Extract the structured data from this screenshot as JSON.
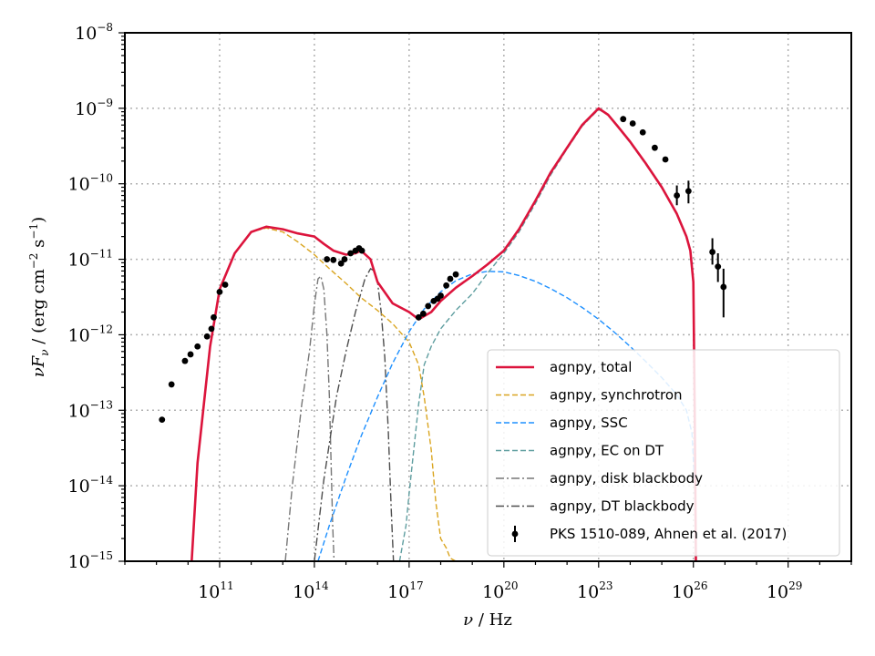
{
  "chart_data": {
    "type": "line",
    "x_scale": "log",
    "y_scale": "log",
    "xlim": [
      100000000.0,
      1e+31
    ],
    "ylim": [
      1e-15,
      1e-08
    ],
    "grid": true,
    "legend_position": "lower-right",
    "xlabel": "ν / Hz",
    "ylabel": "νF_ν / (erg cm^-2 s^-1)",
    "x_ticks": [
      {
        "value": 100000000000.0,
        "base": "10",
        "exp": "11"
      },
      {
        "value": 100000000000000.0,
        "base": "10",
        "exp": "14"
      },
      {
        "value": 1e+17,
        "base": "10",
        "exp": "17"
      },
      {
        "value": 1e+20,
        "base": "10",
        "exp": "20"
      },
      {
        "value": 1e+23,
        "base": "10",
        "exp": "23"
      },
      {
        "value": 1e+26,
        "base": "10",
        "exp": "26"
      },
      {
        "value": 1e+29,
        "base": "10",
        "exp": "29"
      }
    ],
    "y_ticks": [
      {
        "value": 1e-08,
        "base": "10",
        "exp": "−8"
      },
      {
        "value": 1e-09,
        "base": "10",
        "exp": "−9"
      },
      {
        "value": 1e-10,
        "base": "10",
        "exp": "−10"
      },
      {
        "value": 1e-11,
        "base": "10",
        "exp": "−11"
      },
      {
        "value": 1e-12,
        "base": "10",
        "exp": "−12"
      },
      {
        "value": 1e-13,
        "base": "10",
        "exp": "−13"
      },
      {
        "value": 1e-14,
        "base": "10",
        "exp": "−14"
      },
      {
        "value": 1e-15,
        "base": "10",
        "exp": "−15"
      }
    ],
    "series": [
      {
        "name": "agnpy, total",
        "color": "#dc143c",
        "style": "solid",
        "x": [
          13000000000.0,
          20000000000.0,
          50000000000.0,
          100000000000.0,
          300000000000.0,
          1000000000000.0,
          3000000000000.0,
          10000000000000.0,
          30000000000000.0,
          100000000000000.0,
          200000000000000.0,
          400000000000000.0,
          1000000000000000.0,
          2000000000000000.0,
          3000000000000000.0,
          6000000000000000.0,
          1e+16,
          3e+16,
          1e+17,
          2e+17,
          5e+17,
          1e+18,
          3e+18,
          1e+19,
          3e+19,
          1e+20,
          3e+20,
          1e+21,
          3e+21,
          1e+22,
          3e+22,
          1e+23,
          2e+23,
          4e+23,
          1e+24,
          3e+24,
          1e+25,
          3e+25,
          6e+25,
          8e+25,
          1e+26,
          1.1e+26,
          1.2e+26
        ],
        "y": [
          1e-15,
          2e-14,
          7e-13,
          4e-12,
          1.2e-11,
          2.3e-11,
          2.7e-11,
          2.5e-11,
          2.2e-11,
          2e-11,
          1.6e-11,
          1.3e-11,
          1.15e-11,
          1.2e-11,
          1.3e-11,
          1e-11,
          5e-12,
          2.6e-12,
          2e-12,
          1.6e-12,
          2e-12,
          2.8e-12,
          4.2e-12,
          6e-12,
          8.5e-12,
          1.3e-11,
          2.5e-11,
          6e-11,
          1.4e-10,
          3e-10,
          6e-10,
          1e-09,
          8.2e-10,
          5.8e-10,
          3.6e-10,
          1.9e-10,
          9e-11,
          4e-11,
          2e-11,
          1.3e-11,
          5e-12,
          1e-13,
          1e-15
        ]
      },
      {
        "name": "agnpy, synchrotron",
        "color": "#daa520",
        "style": "dashed",
        "x": [
          13000000000.0,
          20000000000.0,
          50000000000.0,
          100000000000.0,
          300000000000.0,
          1000000000000.0,
          3000000000000.0,
          10000000000000.0,
          30000000000000.0,
          100000000000000.0,
          300000000000000.0,
          1000000000000000.0,
          3000000000000000.0,
          1e+16,
          3e+16,
          1e+17,
          2e+17,
          3e+17,
          5e+17,
          7e+17,
          1e+18,
          1.5e+18,
          2e+18,
          3e+18
        ],
        "y": [
          1e-15,
          2e-14,
          7e-13,
          4e-12,
          1.2e-11,
          2.3e-11,
          2.6e-11,
          2.3e-11,
          1.7e-11,
          1.15e-11,
          7.5e-12,
          4.8e-12,
          3.1e-12,
          2.1e-12,
          1.4e-12,
          8e-13,
          4e-13,
          1.5e-13,
          3e-14,
          6e-15,
          2e-15,
          1.5e-15,
          1.1e-15,
          1e-15
        ]
      },
      {
        "name": "agnpy, SSC",
        "color": "#1e90ff",
        "style": "dashed",
        "x": [
          130000000000000.0,
          300000000000000.0,
          1000000000000000.0,
          3000000000000000.0,
          1e+16,
          3e+16,
          1e+17,
          3e+17,
          1e+18,
          3e+18,
          1e+19,
          3e+19,
          1e+20,
          3e+20,
          1e+21,
          3e+21,
          1e+22,
          3e+22,
          1e+23,
          3e+23,
          1e+24,
          3e+24,
          1e+25,
          3e+25,
          6e+25,
          9e+25,
          1.1e+26,
          1.2e+26
        ],
        "y": [
          1e-15,
          3e-15,
          1.3e-14,
          4.5e-14,
          1.5e-13,
          4.2e-13,
          1.1e-12,
          2.2e-12,
          3.7e-12,
          5.2e-12,
          6.4e-12,
          6.9e-12,
          6.8e-12,
          6.1e-12,
          5.1e-12,
          4.1e-12,
          3.1e-12,
          2.3e-12,
          1.6e-12,
          1.1e-12,
          7e-13,
          4.5e-13,
          2.7e-13,
          1.6e-13,
          1e-13,
          5e-14,
          1e-14,
          1e-15
        ]
      },
      {
        "name": "agnpy, EC on DT",
        "color": "#5f9ea0",
        "style": "dashed",
        "x": [
          5e+16,
          8e+16,
          1e+17,
          2e+17,
          3e+17,
          5e+17,
          1e+18,
          3e+18,
          1e+19,
          3e+19,
          1e+20,
          3e+20,
          1e+21,
          3e+21,
          1e+22,
          3e+22,
          1e+23,
          2e+23,
          4e+23,
          1e+24,
          3e+24,
          1e+25,
          3e+25,
          6e+25,
          8e+25,
          1e+26,
          1.1e+26,
          1.2e+26
        ],
        "y": [
          1e-15,
          3e-15,
          8e-15,
          1.2e-13,
          4e-13,
          7e-13,
          1.2e-12,
          2.1e-12,
          3.5e-12,
          6.5e-12,
          1.2e-11,
          2.3e-11,
          5.5e-11,
          1.3e-10,
          2.9e-10,
          5.8e-10,
          9.7e-10,
          8.1e-10,
          5.7e-10,
          3.5e-10,
          1.85e-10,
          8.8e-11,
          3.9e-11,
          1.95e-11,
          1.3e-11,
          5e-12,
          1e-13,
          1e-15
        ]
      },
      {
        "name": "agnpy, disk blackbody",
        "color": "#696969",
        "style": "dashdot",
        "x": [
          12000000000000.0,
          20000000000000.0,
          40000000000000.0,
          70000000000000.0,
          100000000000000.0,
          130000000000000.0,
          160000000000000.0,
          200000000000000.0,
          250000000000000.0,
          300000000000000.0,
          380000000000000.0,
          420000000000000.0
        ],
        "y": [
          1e-15,
          1e-14,
          1.2e-13,
          6e-13,
          2.5e-12,
          5.5e-12,
          6e-12,
          4e-12,
          1e-12,
          1.5e-13,
          3e-15,
          1e-15
        ],
        "shade": "#777777"
      },
      {
        "name": "agnpy, DT blackbody",
        "color": "#696969",
        "style": "dashdot",
        "x": [
          100000000000000.0,
          200000000000000.0,
          500000000000000.0,
          1000000000000000.0,
          2000000000000000.0,
          4000000000000000.0,
          6000000000000000.0,
          8000000000000000.0,
          1e+16,
          1.3e+16,
          1.7e+16,
          2.2e+16,
          2.7e+16,
          3.2e+16
        ],
        "y": [
          1e-15,
          1.2e-14,
          1.5e-13,
          6e-13,
          2e-12,
          5.5e-12,
          7.5e-12,
          7e-12,
          5e-12,
          2e-12,
          5e-13,
          5e-14,
          5e-15,
          1e-15
        ],
        "shade": "#4d4d4d"
      }
    ],
    "data_points": {
      "name": "PKS 1510-089, Ahnen et al. (2017)",
      "color": "#000000",
      "points": [
        {
          "x": 1500000000.0,
          "y": 7.5e-14
        },
        {
          "x": 3000000000.0,
          "y": 2.2e-13
        },
        {
          "x": 8000000000.0,
          "y": 4.5e-13
        },
        {
          "x": 12000000000.0,
          "y": 5.5e-13
        },
        {
          "x": 20000000000.0,
          "y": 7e-13
        },
        {
          "x": 40000000000.0,
          "y": 9.5e-13
        },
        {
          "x": 55000000000.0,
          "y": 1.2e-12
        },
        {
          "x": 65000000000.0,
          "y": 1.7e-12
        },
        {
          "x": 100000000000.0,
          "y": 3.7e-12
        },
        {
          "x": 150000000000.0,
          "y": 4.6e-12
        },
        {
          "x": 250000000000000.0,
          "y": 1e-11
        },
        {
          "x": 400000000000000.0,
          "y": 9.8e-12
        },
        {
          "x": 700000000000000.0,
          "y": 8.8e-12
        },
        {
          "x": 900000000000000.0,
          "y": 1e-11
        },
        {
          "x": 1400000000000000.0,
          "y": 1.2e-11
        },
        {
          "x": 2000000000000000.0,
          "y": 1.3e-11
        },
        {
          "x": 2600000000000000.0,
          "y": 1.4e-11
        },
        {
          "x": 3200000000000000.0,
          "y": 1.3e-11
        },
        {
          "x": 2e+17,
          "y": 1.7e-12
        },
        {
          "x": 2.8e+17,
          "y": 1.9e-12
        },
        {
          "x": 4e+17,
          "y": 2.4e-12
        },
        {
          "x": 6e+17,
          "y": 2.8e-12
        },
        {
          "x": 8e+17,
          "y": 3e-12
        },
        {
          "x": 1e+18,
          "y": 3.3e-12
        },
        {
          "x": 1.5e+18,
          "y": 4.5e-12
        },
        {
          "x": 2e+18,
          "y": 5.5e-12
        },
        {
          "x": 3e+18,
          "y": 6.3e-12
        },
        {
          "x": 6e+23,
          "y": 7.2e-10
        },
        {
          "x": 1.2e+24,
          "y": 6.3e-10
        },
        {
          "x": 2.5e+24,
          "y": 4.8e-10
        },
        {
          "x": 6e+24,
          "y": 3e-10
        },
        {
          "x": 1.3e+25,
          "y": 2.1e-10
        },
        {
          "x": 3e+25,
          "y": 7e-11,
          "yerr": [
            5.2e-11,
            9.5e-11
          ]
        },
        {
          "x": 7e+25,
          "y": 8e-11,
          "yerr": [
            5.5e-11,
            1.1e-10
          ]
        },
        {
          "x": 4e+26,
          "y": 1.25e-11,
          "yerr": [
            8.5e-12,
            1.9e-11
          ]
        },
        {
          "x": 6e+26,
          "y": 8e-12,
          "yerr": [
            5e-12,
            1.2e-11
          ]
        },
        {
          "x": 9e+26,
          "y": 4.3e-12,
          "yerr": [
            1.7e-12,
            7.5e-12
          ]
        }
      ]
    }
  }
}
